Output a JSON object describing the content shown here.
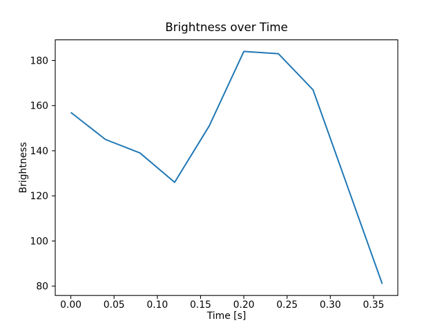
{
  "chart_data": {
    "type": "line",
    "title": "Brightness over Time",
    "xlabel": "Time [s]",
    "ylabel": "Brightness",
    "grid": false,
    "legend": false,
    "background": "#ffffff",
    "axis_color": "#000000",
    "xlim": [
      -0.018,
      0.378
    ],
    "ylim": [
      75.85,
      189.15
    ],
    "xticks": [
      {
        "value": 0.0,
        "label": "0.00"
      },
      {
        "value": 0.05,
        "label": "0.05"
      },
      {
        "value": 0.1,
        "label": "0.10"
      },
      {
        "value": 0.15,
        "label": "0.15"
      },
      {
        "value": 0.2,
        "label": "0.20"
      },
      {
        "value": 0.25,
        "label": "0.25"
      },
      {
        "value": 0.3,
        "label": "0.30"
      },
      {
        "value": 0.35,
        "label": "0.35"
      }
    ],
    "yticks": [
      {
        "value": 80,
        "label": "80"
      },
      {
        "value": 100,
        "label": "100"
      },
      {
        "value": 120,
        "label": "120"
      },
      {
        "value": 140,
        "label": "140"
      },
      {
        "value": 160,
        "label": "160"
      },
      {
        "value": 180,
        "label": "180"
      }
    ],
    "series": [
      {
        "name": "brightness",
        "color": "#1f77b4",
        "x": [
          0.0,
          0.04,
          0.08,
          0.12,
          0.16,
          0.2,
          0.24,
          0.28,
          0.36
        ],
        "y": [
          157,
          145,
          139,
          126,
          151,
          184,
          183,
          167,
          81
        ]
      }
    ]
  }
}
